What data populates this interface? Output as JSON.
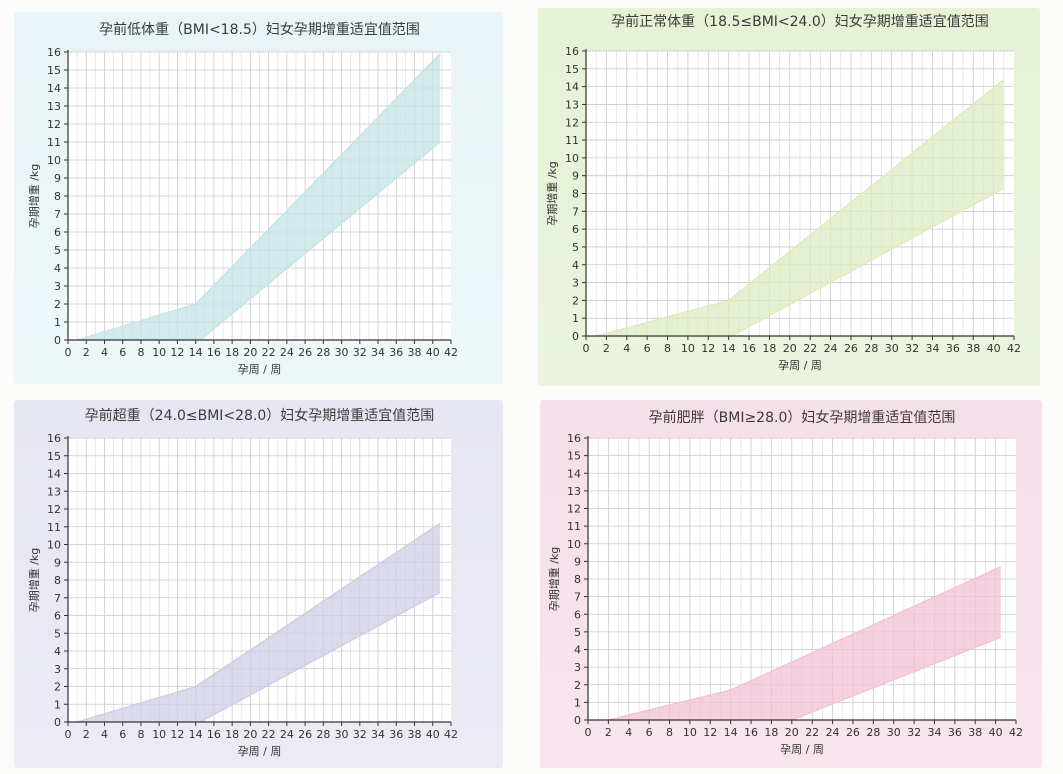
{
  "chart_data": [
    {
      "type": "area",
      "title": "孕前低体重（BMI<18.5）妇女孕期增重适宜值范围",
      "xlabel": "孕周 / 周",
      "ylabel": "孕期增重 /kg",
      "xlim": [
        0,
        42
      ],
      "ylim": [
        0,
        16
      ],
      "x_ticks": [
        0,
        2,
        4,
        6,
        8,
        10,
        12,
        14,
        16,
        18,
        20,
        22,
        24,
        26,
        28,
        30,
        32,
        34,
        36,
        38,
        40,
        42
      ],
      "y_ticks": [
        0,
        1,
        2,
        3,
        4,
        5,
        6,
        7,
        8,
        9,
        10,
        11,
        12,
        13,
        14,
        15,
        16
      ],
      "grid": true,
      "fill_color": "#c4e3e6",
      "series": [
        {
          "x": [
            1,
            14,
            40.8
          ],
          "values": [
            0,
            2,
            15.9
          ]
        },
        {
          "x": [
            14.5,
            40.8
          ],
          "values": [
            0,
            11
          ]
        }
      ]
    },
    {
      "type": "area",
      "title": "孕前正常体重（18.5≤BMI<24.0）妇女孕期增重适宜值范围",
      "xlabel": "孕周 / 周",
      "ylabel": "孕期增重 /kg",
      "xlim": [
        0,
        42
      ],
      "ylim": [
        0,
        16
      ],
      "x_ticks": [
        0,
        2,
        4,
        6,
        8,
        10,
        12,
        14,
        16,
        18,
        20,
        22,
        24,
        26,
        28,
        30,
        32,
        34,
        36,
        38,
        40,
        42
      ],
      "y_ticks": [
        0,
        1,
        2,
        3,
        4,
        5,
        6,
        7,
        8,
        9,
        10,
        11,
        12,
        13,
        14,
        15,
        16
      ],
      "grid": true,
      "fill_color": "#dcebc0",
      "series": [
        {
          "x": [
            1,
            14,
            41
          ],
          "values": [
            0,
            2,
            14.4
          ]
        },
        {
          "x": [
            14.3,
            41
          ],
          "values": [
            0,
            8.3
          ]
        }
      ]
    },
    {
      "type": "area",
      "title": "孕前超重（24.0≤BMI<28.0）妇女孕期增重适宜值范围",
      "xlabel": "孕周 / 周",
      "ylabel": "孕期增重 /kg",
      "xlim": [
        0,
        42
      ],
      "ylim": [
        0,
        16
      ],
      "x_ticks": [
        0,
        2,
        4,
        6,
        8,
        10,
        12,
        14,
        16,
        18,
        20,
        22,
        24,
        26,
        28,
        30,
        32,
        34,
        36,
        38,
        40,
        42
      ],
      "y_ticks": [
        0,
        1,
        2,
        3,
        4,
        5,
        6,
        7,
        8,
        9,
        10,
        11,
        12,
        13,
        14,
        15,
        16
      ],
      "grid": true,
      "fill_color": "#cdcde6",
      "series": [
        {
          "x": [
            1,
            14,
            40.8
          ],
          "values": [
            0,
            2,
            11.2
          ]
        },
        {
          "x": [
            14.5,
            40.8
          ],
          "values": [
            0,
            7.3
          ]
        }
      ]
    },
    {
      "type": "area",
      "title": "孕前肥胖（BMI≥28.0）妇女孕期增重适宜值范围",
      "xlabel": "孕周 / 周",
      "ylabel": "孕期增重 /kg",
      "xlim": [
        0,
        42
      ],
      "ylim": [
        0,
        16
      ],
      "x_ticks": [
        0,
        2,
        4,
        6,
        8,
        10,
        12,
        14,
        16,
        18,
        20,
        22,
        24,
        26,
        28,
        30,
        32,
        34,
        36,
        38,
        40,
        42
      ],
      "y_ticks": [
        0,
        1,
        2,
        3,
        4,
        5,
        6,
        7,
        8,
        9,
        10,
        11,
        12,
        13,
        14,
        15,
        16
      ],
      "grid": true,
      "fill_color": "#f2c2d4",
      "series": [
        {
          "x": [
            2,
            14,
            40.5
          ],
          "values": [
            0,
            1.7,
            8.7
          ]
        },
        {
          "x": [
            20,
            40.5
          ],
          "values": [
            0,
            4.7
          ]
        }
      ]
    }
  ]
}
